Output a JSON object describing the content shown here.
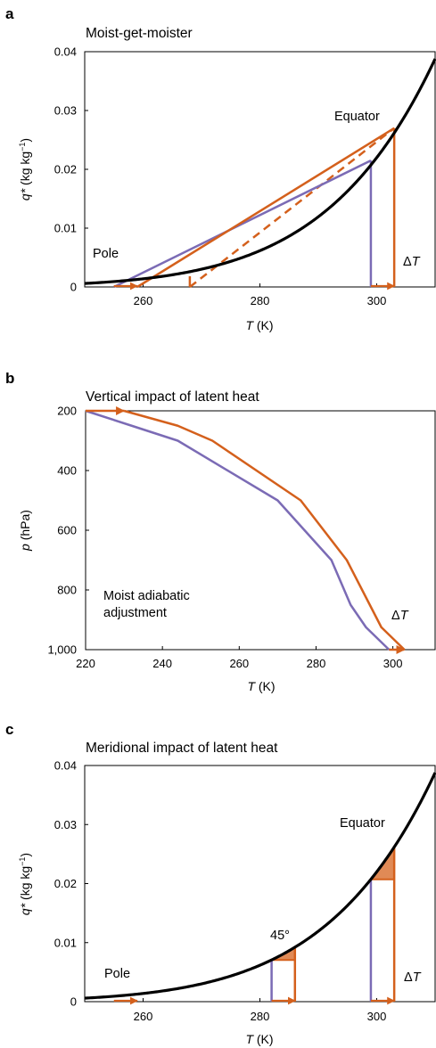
{
  "colors": {
    "orange": "#d4601c",
    "purple": "#7b6bb5",
    "black": "#000000",
    "fill_orange": "#e08a56"
  },
  "chart_data": [
    {
      "panel": "a",
      "title": "Moist-get-moister",
      "type": "line",
      "xlabel_var": "T",
      "xlabel_unit": " (K)",
      "ylabel_var": "q*",
      "ylabel_unit_pre": " (kg kg",
      "ylabel_unit_sup": "−1",
      "ylabel_unit_post": ")",
      "xlim": [
        250,
        310
      ],
      "ylim": [
        0,
        0.04
      ],
      "xticks": [
        260,
        280,
        300
      ],
      "yticks": [
        0,
        0.01,
        0.02,
        0.03,
        0.04
      ],
      "ytick_labels": [
        "0",
        "0.01",
        "0.02",
        "0.03",
        "0.04"
      ],
      "curve": "saturation specific humidity q*(T)",
      "purple_secant": [
        [
          255,
          0
        ],
        [
          299,
          0.0215
        ]
      ],
      "purple_drop_x": 299,
      "orange_secant": [
        [
          259,
          0
        ],
        [
          303,
          0.027
        ]
      ],
      "orange_dashed": [
        [
          268,
          0
        ],
        [
          303,
          0.027
        ]
      ],
      "orange_dashed_drop_x": 268,
      "orange_drop_x": 303,
      "arrows_bottom": [
        [
          255,
          259
        ],
        [
          299,
          303
        ]
      ],
      "labels": {
        "equator": "Equator",
        "pole": "Pole",
        "dT_sym": "Δ",
        "dT_var": "T"
      }
    },
    {
      "panel": "b",
      "title": "Vertical impact of latent heat",
      "type": "line",
      "xlabel_var": "T",
      "xlabel_unit": " (K)",
      "ylabel_var": "p",
      "ylabel_unit": " (hPa)",
      "xlim": [
        220,
        311
      ],
      "ylim": [
        1000,
        200
      ],
      "xticks": [
        220,
        240,
        260,
        280,
        300
      ],
      "yticks": [
        200,
        400,
        600,
        800,
        1000
      ],
      "ytick_labels": [
        "200",
        "400",
        "600",
        "800",
        "1,000"
      ],
      "series": [
        {
          "color": "purple",
          "points": [
            [
              299,
              1000
            ],
            [
              293,
              925
            ],
            [
              289,
              850
            ],
            [
              284,
              700
            ],
            [
              270,
              500
            ],
            [
              244,
              300
            ],
            [
              232,
              250
            ],
            [
              220,
              200
            ]
          ]
        },
        {
          "color": "orange",
          "points": [
            [
              303,
              1000
            ],
            [
              297,
              925
            ],
            [
              294,
              850
            ],
            [
              288,
              700
            ],
            [
              276,
              500
            ],
            [
              253,
              300
            ],
            [
              244,
              250
            ],
            [
              230,
              200
            ]
          ]
        }
      ],
      "arrows": [
        [
          220,
          200,
          230,
          200
        ],
        [
          299,
          1000,
          303,
          1000
        ]
      ],
      "labels": {
        "annot_line1": "Moist adiabatic",
        "annot_line2": "adjustment",
        "dT_sym": "Δ",
        "dT_var": "T"
      }
    },
    {
      "panel": "c",
      "title": "Meridional impact of latent heat",
      "type": "line",
      "xlabel_var": "T",
      "xlabel_unit": " (K)",
      "ylabel_var": "q*",
      "ylabel_unit_pre": " (kg kg",
      "ylabel_unit_sup": "−1",
      "ylabel_unit_post": ")",
      "xlim": [
        250,
        310
      ],
      "ylim": [
        0,
        0.04
      ],
      "xticks": [
        260,
        280,
        300
      ],
      "yticks": [
        0,
        0.01,
        0.02,
        0.03,
        0.04
      ],
      "ytick_labels": [
        "0",
        "0.01",
        "0.02",
        "0.03",
        "0.04"
      ],
      "curve": "saturation specific humidity q*(T)",
      "mid_lat": {
        "purple_x": 282,
        "orange_x": 286
      },
      "equator": {
        "purple_x": 299,
        "orange_x": 303
      },
      "arrows_bottom": [
        [
          255,
          259
        ],
        [
          282,
          286
        ],
        [
          299,
          303
        ]
      ],
      "labels": {
        "equator": "Equator",
        "pole": "Pole",
        "mid": "45°",
        "dT_sym": "Δ",
        "dT_var": "T"
      }
    }
  ]
}
